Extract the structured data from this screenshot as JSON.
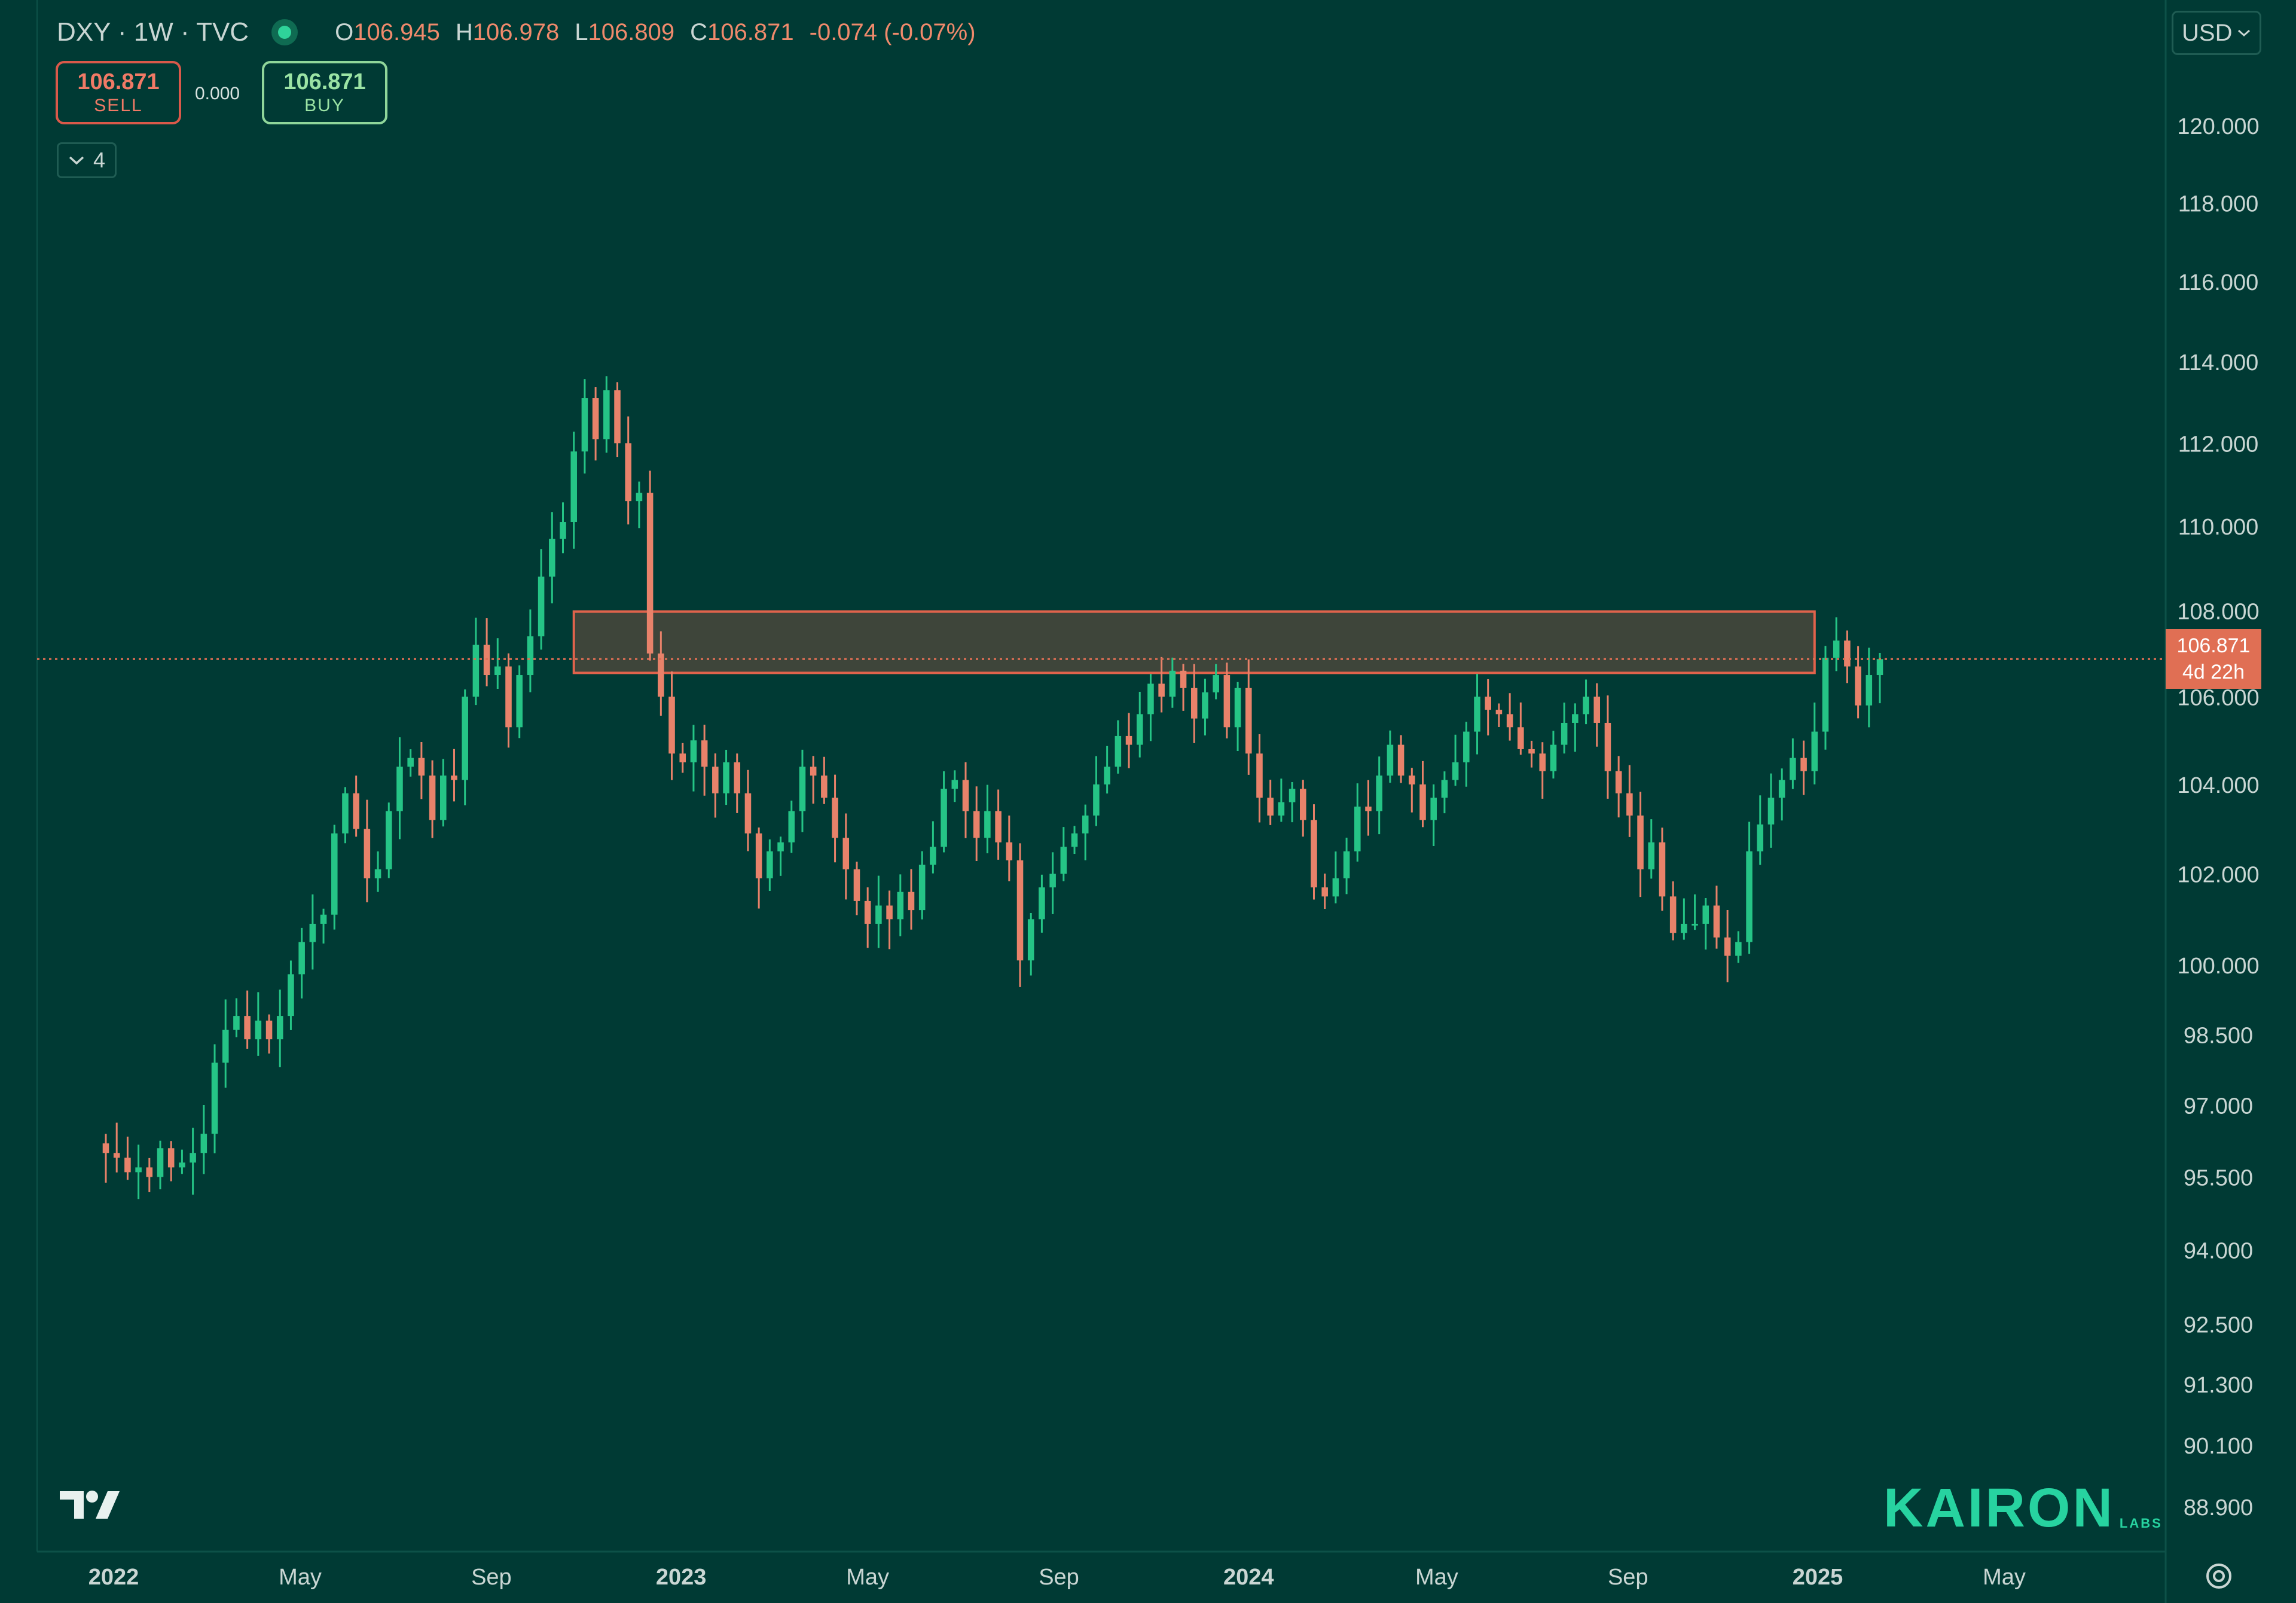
{
  "legend": {
    "symbol": "DXY · 1W · TVC",
    "open_key": "O",
    "open": "106.945",
    "high_key": "H",
    "high": "106.978",
    "low_key": "L",
    "low": "106.809",
    "close_key": "C",
    "close": "106.871",
    "change": "-0.074 (-0.07%)"
  },
  "trade": {
    "sell_price": "106.871",
    "sell_label": "SELL",
    "spread": "0.000",
    "buy_price": "106.871",
    "buy_label": "BUY"
  },
  "indicators_count": "4",
  "currency": "USD",
  "price_tag": {
    "price": "106.871",
    "countdown": "4d 22h"
  },
  "brand": {
    "name": "KAIRON",
    "sub": "LABS"
  },
  "colors": {
    "background": "#003a34",
    "up": "#25c486",
    "down": "#e8826a",
    "zone": "#e0634c",
    "price_line": "#e06f54"
  },
  "chart_data": {
    "type": "candlestick",
    "symbol": "DXY",
    "interval": "1W",
    "x_start": "2021-12-27",
    "x_tick_labels": [
      {
        "label": "2022",
        "date": "2022-01-01",
        "bold": true
      },
      {
        "label": "May",
        "date": "2022-05-01",
        "bold": false
      },
      {
        "label": "Sep",
        "date": "2022-09-01",
        "bold": false
      },
      {
        "label": "2023",
        "date": "2023-01-01",
        "bold": true
      },
      {
        "label": "May",
        "date": "2023-05-01",
        "bold": false
      },
      {
        "label": "Sep",
        "date": "2023-09-01",
        "bold": false
      },
      {
        "label": "2024",
        "date": "2024-01-01",
        "bold": true
      },
      {
        "label": "May",
        "date": "2024-05-01",
        "bold": false
      },
      {
        "label": "Sep",
        "date": "2024-09-01",
        "bold": false
      },
      {
        "label": "2025",
        "date": "2025-01-01",
        "bold": true
      },
      {
        "label": "May",
        "date": "2025-05-01",
        "bold": false
      }
    ],
    "y_tick_labels": [
      "120.000",
      "118.000",
      "116.000",
      "114.000",
      "112.000",
      "110.000",
      "108.000",
      "106.000",
      "104.000",
      "102.000",
      "100.000",
      "98.500",
      "97.000",
      "95.500",
      "94.000",
      "92.500",
      "91.300",
      "90.100",
      "88.900"
    ],
    "y_scale": "log",
    "y_range": [
      88.4,
      121.5
    ],
    "last_price": 106.871,
    "resistance_zone": {
      "from_date": "2022-10-24",
      "to_date": "2024-12-30",
      "low": 106.55,
      "high": 107.98
    },
    "closes": [
      96.0,
      95.9,
      95.6,
      95.7,
      95.5,
      96.1,
      95.7,
      95.8,
      96.0,
      96.4,
      97.9,
      98.6,
      98.9,
      98.4,
      98.8,
      98.4,
      98.9,
      99.8,
      100.5,
      100.9,
      101.1,
      102.9,
      103.8,
      103.0,
      101.9,
      102.1,
      103.4,
      104.4,
      104.6,
      104.2,
      103.2,
      104.2,
      104.1,
      106.0,
      107.2,
      106.5,
      106.7,
      105.3,
      106.5,
      107.4,
      108.8,
      109.7,
      110.1,
      111.8,
      113.1,
      112.1,
      113.3,
      112.0,
      110.6,
      110.8,
      107.0,
      106.0,
      104.7,
      104.5,
      105.0,
      104.4,
      103.8,
      104.5,
      103.8,
      102.9,
      101.9,
      102.5,
      102.7,
      103.4,
      104.4,
      104.2,
      103.7,
      102.8,
      102.1,
      101.4,
      100.9,
      101.3,
      101.0,
      101.6,
      101.2,
      102.2,
      102.6,
      103.9,
      104.1,
      103.4,
      102.8,
      103.4,
      102.7,
      102.3,
      100.1,
      101.0,
      101.7,
      102.0,
      102.6,
      102.9,
      103.3,
      104.0,
      104.4,
      105.1,
      104.9,
      105.6,
      106.3,
      106.0,
      106.6,
      106.2,
      105.5,
      106.1,
      106.5,
      105.3,
      106.2,
      104.7,
      103.7,
      103.3,
      103.6,
      103.9,
      103.2,
      101.7,
      101.5,
      101.9,
      102.5,
      103.5,
      103.4,
      104.2,
      104.9,
      104.2,
      104.0,
      103.2,
      103.7,
      104.1,
      104.5,
      105.2,
      106.0,
      105.7,
      105.6,
      105.3,
      104.8,
      104.7,
      104.3,
      104.9,
      105.4,
      105.6,
      106.0,
      105.4,
      104.3,
      103.8,
      103.3,
      102.1,
      102.7,
      101.5,
      100.7,
      100.9,
      100.9,
      101.3,
      100.6,
      100.2,
      100.5,
      102.5,
      103.1,
      103.7,
      104.1,
      104.6,
      104.3,
      105.2,
      106.9,
      107.3,
      106.7,
      105.8,
      106.5,
      106.871
    ]
  }
}
